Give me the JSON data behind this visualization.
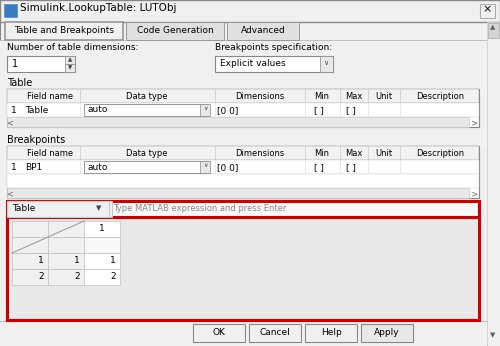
{
  "title": "Simulink.LookupTable: LUTObj",
  "bg_color": "#f0f0f0",
  "white": "#ffffff",
  "border_color": "#a0a0a0",
  "tabs": [
    "Table and Breakpoints",
    "Code Generation",
    "Advanced"
  ],
  "dim_label": "Number of table dimensions:",
  "dim_value": "1",
  "bp_label": "Breakpoints specification:",
  "bp_value": "Explicit values",
  "table_section": "Table",
  "table_headers": [
    "Field name",
    "Data type",
    "Dimensions",
    "Min",
    "Max",
    "Unit",
    "Description"
  ],
  "table_row_num": "1",
  "table_row_field": "Table",
  "table_row_dtype": "auto",
  "table_row_dim": "[0 0]",
  "table_row_min": "[ ]",
  "table_row_max": "[ ]",
  "bp_section": "Breakpoints",
  "bp_row_num": "1",
  "bp_row_field": "BP1",
  "bp_row_dtype": "auto",
  "bp_row_dim": "[0 0]",
  "bp_row_min": "[ ]",
  "bp_row_max": "[ ]",
  "spreadsheet_label": "Table",
  "spreadsheet_hint": "Type MATLAB expression and press Enter",
  "ok_btn": "OK",
  "cancel_btn": "Cancel",
  "help_btn": "Help",
  "apply_btn": "Apply",
  "red_color": "#cc0000",
  "gray_light": "#e8e8e8",
  "gray_mid": "#c8c8c8",
  "gray_scroll": "#d0d0d0",
  "title_bar_color": "#f0f0f0",
  "tab_active_color": "#f0f0f0",
  "tab_inactive_color": "#e0e0e0",
  "header_row_color": "#f2f2f2",
  "scrollbar_color": "#d4d4d4"
}
